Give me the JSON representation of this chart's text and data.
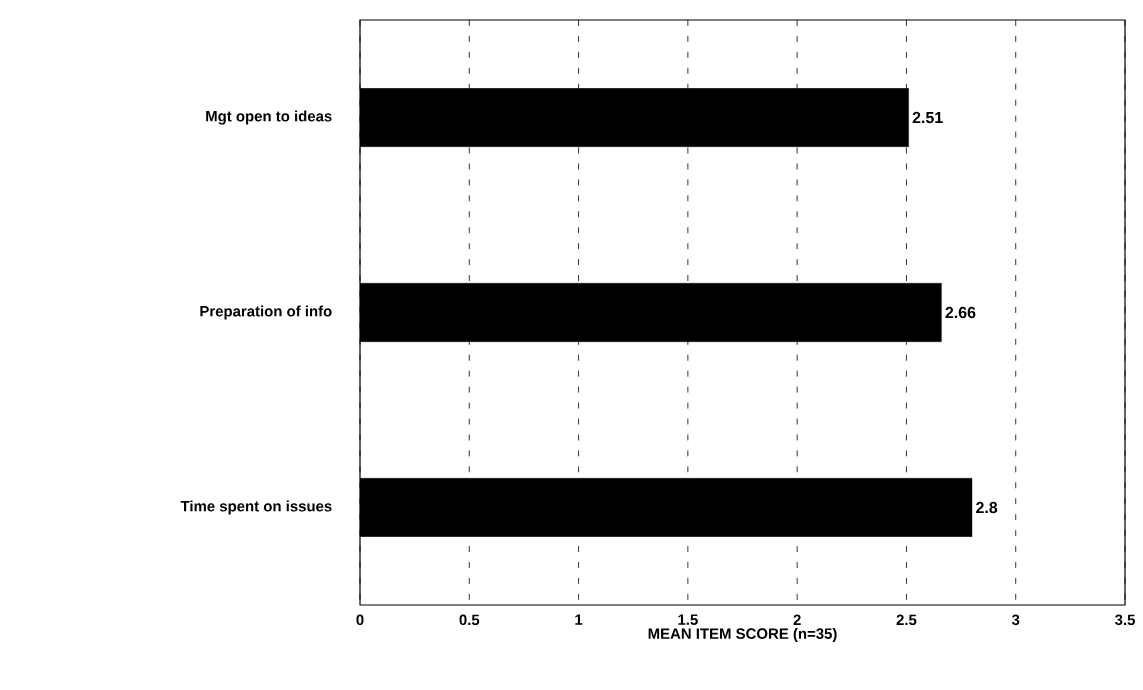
{
  "chart_data": {
    "type": "bar",
    "orientation": "horizontal",
    "categories": [
      "Mgt open to ideas",
      "Preparation of info",
      "Time spent on issues"
    ],
    "values": [
      2.51,
      2.66,
      2.8
    ],
    "color": "#000000",
    "data_labels": true,
    "xlabel": "MEAN ITEM SCORE (n=35)",
    "xlim": [
      0,
      3.5
    ],
    "xticks": [
      0,
      0.5,
      1,
      1.5,
      2,
      2.5,
      3,
      3.5
    ],
    "grid": "x"
  }
}
